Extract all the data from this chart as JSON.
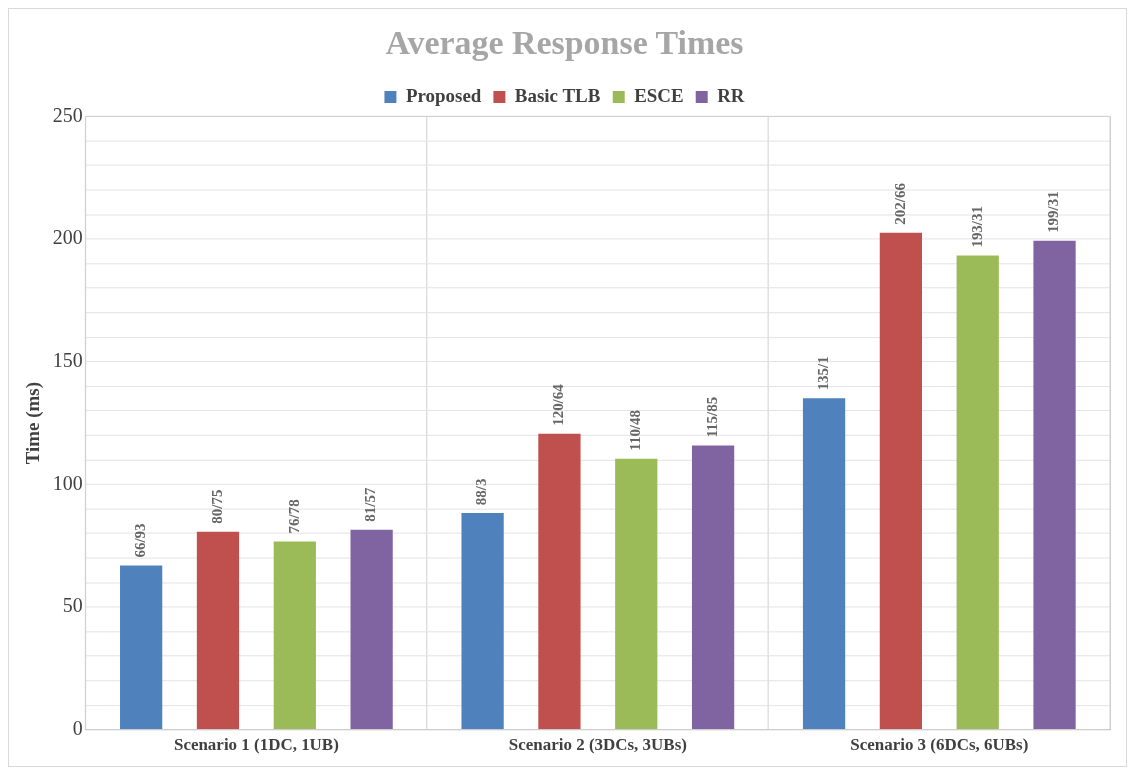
{
  "chart_data": {
    "type": "bar",
    "title": "Average Response Times",
    "ylabel": "Time (ms)",
    "categories": [
      "Scenario 1 (1DC, 1UB)",
      "Scenario 2 (3DCs, 3UBs)",
      "Scenario 3 (6DCs, 6UBs)"
    ],
    "series": [
      {
        "name": "Proposed",
        "color": "#4f81bd",
        "values": [
          66.93,
          88.3,
          135.1
        ],
        "value_labels": [
          "66/93",
          "88/3",
          "135/1"
        ]
      },
      {
        "name": "Basic TLB",
        "color": "#c0504d",
        "values": [
          80.75,
          120.64,
          202.66
        ],
        "value_labels": [
          "80/75",
          "120/64",
          "202/66"
        ]
      },
      {
        "name": "ESCE",
        "color": "#9bbb59",
        "values": [
          76.78,
          110.48,
          193.31
        ],
        "value_labels": [
          "76/78",
          "110/48",
          "193/31"
        ]
      },
      {
        "name": "RR",
        "color": "#8064a2",
        "values": [
          81.57,
          115.85,
          199.31
        ],
        "value_labels": [
          "81/57",
          "115/85",
          "199/31"
        ]
      }
    ],
    "ylim": [
      0,
      250
    ],
    "yticks": [
      0,
      {
        "value": 10,
        "label": null
      },
      {
        "value": 20,
        "label": null
      },
      {
        "value": 30,
        "label": null
      },
      {
        "value": 40,
        "label": null
      },
      50,
      {
        "value": 60,
        "label": null
      },
      {
        "value": 70,
        "label": null
      },
      {
        "value": 80,
        "label": null
      },
      {
        "value": 90,
        "label": null
      },
      100,
      {
        "value": 110,
        "label": null
      },
      {
        "value": 120,
        "label": null
      },
      {
        "value": 130,
        "label": null
      },
      {
        "value": 140,
        "label": null
      },
      150,
      {
        "value": 160,
        "label": null
      },
      {
        "value": 170,
        "label": null
      },
      {
        "value": 180,
        "label": null
      },
      {
        "value": 190,
        "label": null
      },
      200,
      {
        "value": 210,
        "label": null
      },
      {
        "value": 220,
        "label": null
      },
      {
        "value": 230,
        "label": null
      },
      {
        "value": 240,
        "label": null
      },
      250
    ],
    "grid": true,
    "legend": "top"
  }
}
